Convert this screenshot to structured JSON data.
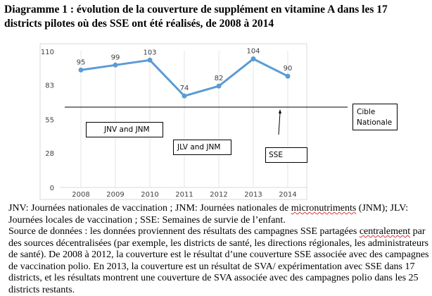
{
  "title": "Diagramme 1 : évolution de la couverture de supplément en vitamine A dans les 17 districts pilotes où des SSE ont été réalisés, de 2008 à 2014",
  "chart_data": {
    "type": "line",
    "categories": [
      "2008",
      "2009",
      "2010",
      "2011",
      "2012",
      "2013",
      "2014"
    ],
    "values": [
      95,
      99,
      103,
      74,
      82,
      104,
      90
    ],
    "ylim": [
      0,
      110
    ],
    "yticks": [
      0,
      28,
      55,
      83,
      110
    ],
    "target": {
      "label": "Cible Nationale",
      "value": 65
    },
    "annotations": [
      "JNV and JNM",
      "JLV and JNM",
      "SSE"
    ],
    "line_color": "#5b9bd5",
    "grid": "vertical"
  },
  "notes": {
    "p1_a": "JNV: Journées nationales de vaccination ; JNM: Journées nationales de ",
    "p1_spell": "micronutriments",
    "p1_b": " (JNM); JLV: Journées locales de vaccination ; SSE: Semaines de survie de l’enfant.",
    "p2_a": "Source de données : les données proviennent des résultats des campagnes SSE partagées ",
    "p2_spell": "centralement",
    "p2_b": " par des sources décentralisées (par exemple, les districts de santé, les directions régionales, les administrateurs de santé). De 2008 à 2012, la couverture est le résultat d’une couverture SSE associée avec des campagnes de vaccination polio. En 2013, la couverture est un résultat de SVA/ expérimentation avec SSE dans 17 districts, et les résultats montrent une couverture de SVA associée avec des campagnes polio dans les 25 districts restants."
  }
}
